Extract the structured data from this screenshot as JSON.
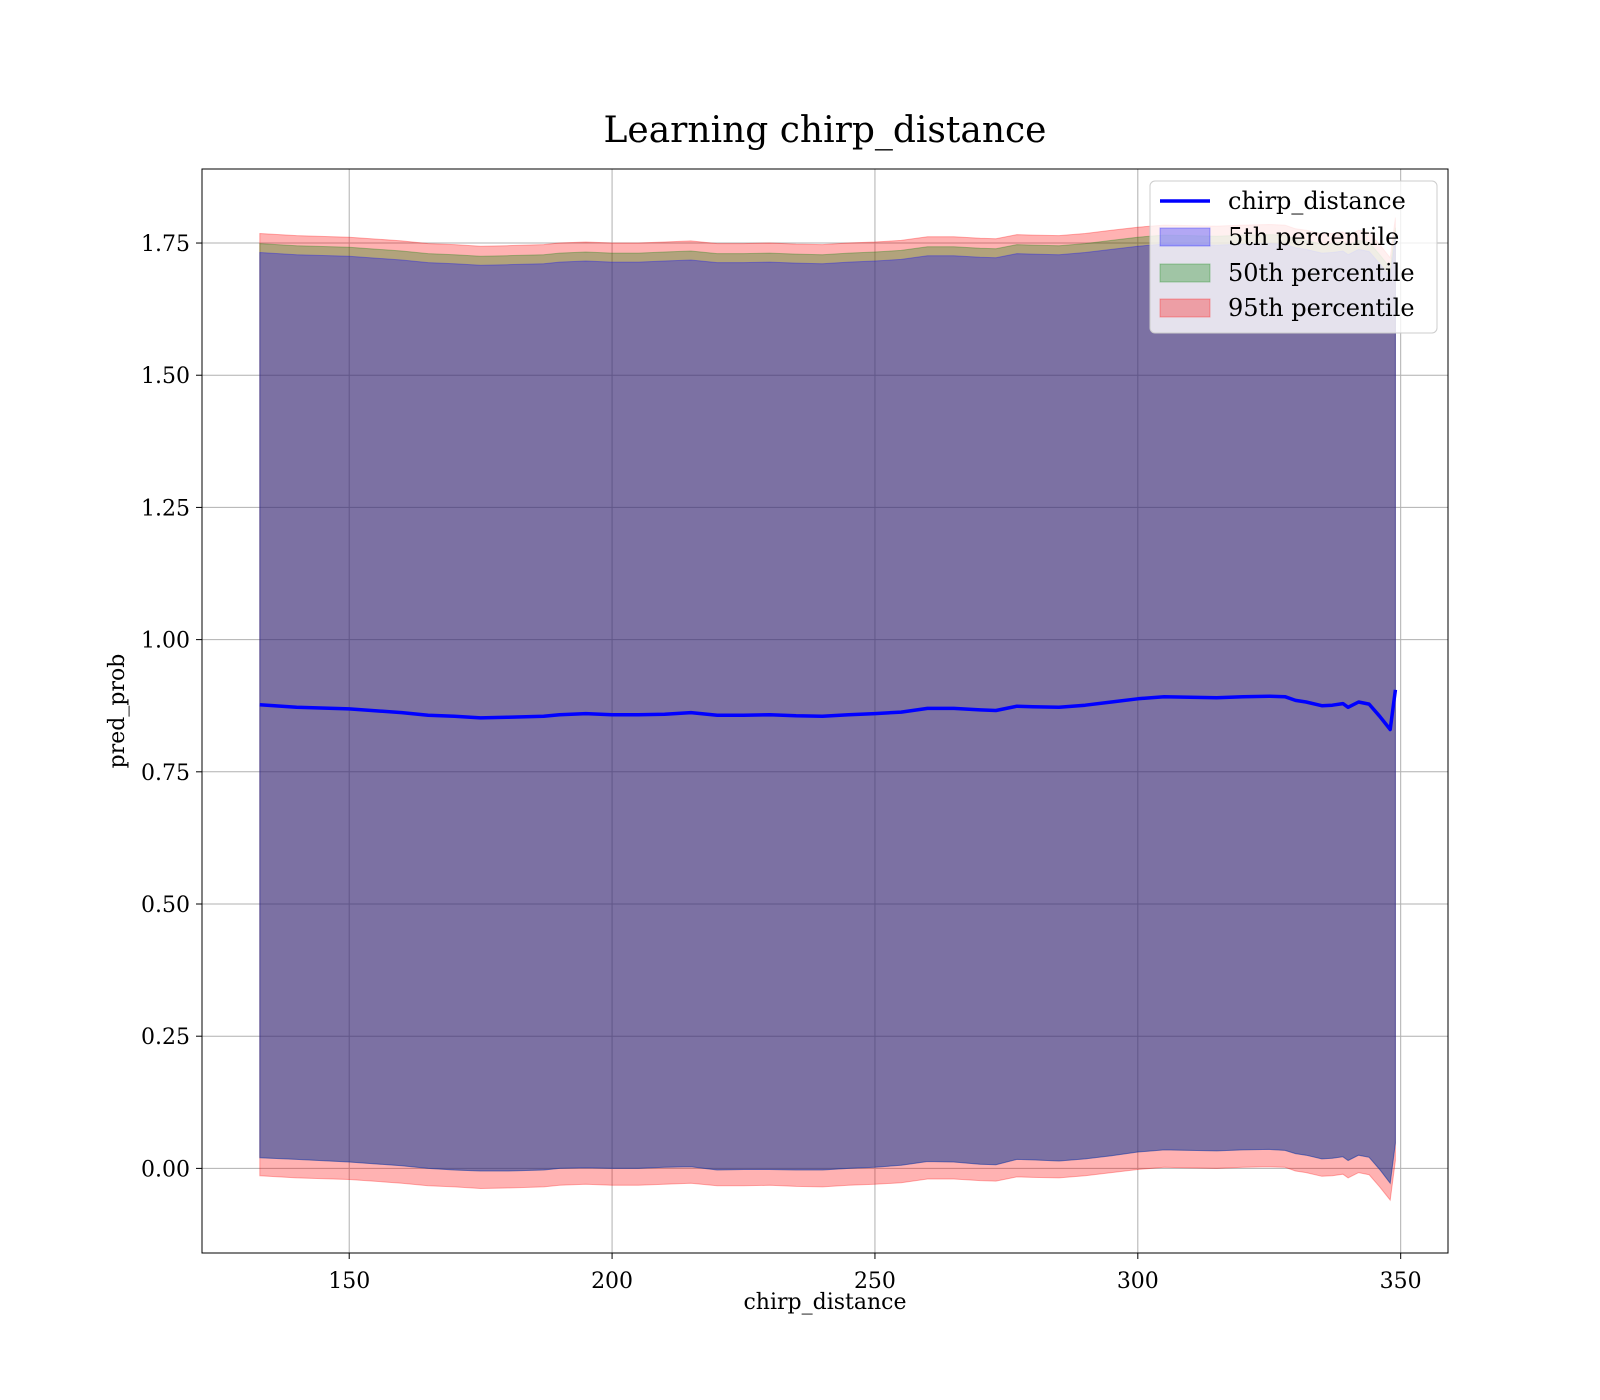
{
  "chart_data": {
    "type": "area",
    "title": "Learning chirp_distance",
    "xlabel": "chirp_distance",
    "ylabel": "pred_prob",
    "xlim": [
      122,
      359
    ],
    "ylim": [
      -0.16,
      1.89
    ],
    "xticks": [
      150,
      200,
      250,
      300,
      350
    ],
    "xtick_labels": [
      "150",
      "200",
      "250",
      "300",
      "350"
    ],
    "yticks": [
      0.0,
      0.25,
      0.5,
      0.75,
      1.0,
      1.25,
      1.5,
      1.75
    ],
    "ytick_labels": [
      "0.00",
      "0.25",
      "0.50",
      "0.75",
      "1.00",
      "1.25",
      "1.50",
      "1.75"
    ],
    "grid": true,
    "legend_position": "top-right",
    "colors": {
      "line": "#0000ff",
      "band_5th": "#0000ff",
      "band_50th": "#008000",
      "band_95th": "#ff0000",
      "grid": "#b0b0b0"
    },
    "x": [
      133,
      140,
      150,
      160,
      165,
      170,
      175,
      180,
      187,
      190,
      195,
      200,
      205,
      210,
      215,
      220,
      225,
      230,
      235,
      240,
      245,
      250,
      255,
      260,
      265,
      270,
      273,
      277,
      280,
      285,
      290,
      295,
      300,
      305,
      310,
      315,
      320,
      325,
      328,
      330,
      332,
      335,
      337,
      339,
      340,
      342,
      344,
      346,
      348,
      349
    ],
    "series": [
      {
        "name": "chirp_distance",
        "style": "line",
        "values": [
          0.877,
          0.872,
          0.869,
          0.862,
          0.857,
          0.855,
          0.852,
          0.853,
          0.855,
          0.858,
          0.86,
          0.858,
          0.858,
          0.859,
          0.862,
          0.857,
          0.857,
          0.858,
          0.856,
          0.855,
          0.858,
          0.86,
          0.863,
          0.87,
          0.87,
          0.867,
          0.866,
          0.874,
          0.873,
          0.872,
          0.876,
          0.882,
          0.888,
          0.892,
          0.891,
          0.89,
          0.892,
          0.893,
          0.892,
          0.885,
          0.882,
          0.875,
          0.876,
          0.879,
          0.872,
          0.882,
          0.878,
          0.855,
          0.83,
          0.905
        ]
      },
      {
        "name": "5th percentile",
        "style": "band",
        "lower": [
          0.02,
          0.017,
          0.012,
          0.005,
          0.0,
          -0.003,
          -0.005,
          -0.005,
          -0.003,
          0.0,
          0.001,
          0.0,
          0.0,
          0.002,
          0.003,
          -0.003,
          -0.002,
          -0.002,
          -0.003,
          -0.003,
          0.0,
          0.002,
          0.006,
          0.013,
          0.012,
          0.008,
          0.007,
          0.017,
          0.016,
          0.014,
          0.018,
          0.024,
          0.031,
          0.035,
          0.034,
          0.033,
          0.035,
          0.036,
          0.034,
          0.028,
          0.025,
          0.018,
          0.019,
          0.022,
          0.015,
          0.025,
          0.021,
          -0.002,
          -0.028,
          0.048
        ],
        "upper": [
          1.732,
          1.728,
          1.725,
          1.718,
          1.713,
          1.711,
          1.708,
          1.709,
          1.711,
          1.714,
          1.716,
          1.714,
          1.714,
          1.716,
          1.718,
          1.713,
          1.713,
          1.714,
          1.712,
          1.711,
          1.714,
          1.716,
          1.719,
          1.726,
          1.726,
          1.723,
          1.722,
          1.73,
          1.729,
          1.728,
          1.732,
          1.738,
          1.744,
          1.748,
          1.747,
          1.746,
          1.748,
          1.749,
          1.748,
          1.741,
          1.738,
          1.731,
          1.732,
          1.735,
          1.728,
          1.738,
          1.734,
          1.711,
          1.686,
          1.762
        ]
      },
      {
        "name": "50th percentile",
        "style": "band",
        "lower": [
          0.02,
          0.017,
          0.012,
          0.005,
          0.0,
          -0.003,
          -0.005,
          -0.005,
          -0.003,
          0.0,
          0.001,
          0.0,
          0.0,
          0.002,
          0.003,
          -0.003,
          -0.002,
          -0.002,
          -0.003,
          -0.003,
          0.0,
          0.002,
          0.006,
          0.013,
          0.012,
          0.008,
          0.007,
          0.017,
          0.016,
          0.014,
          0.018,
          0.024,
          0.031,
          0.035,
          0.034,
          0.033,
          0.035,
          0.036,
          0.034,
          0.028,
          0.025,
          0.018,
          0.019,
          0.022,
          0.015,
          0.025,
          0.021,
          -0.002,
          -0.028,
          0.048
        ],
        "upper": [
          1.749,
          1.745,
          1.742,
          1.735,
          1.73,
          1.728,
          1.725,
          1.726,
          1.728,
          1.731,
          1.733,
          1.731,
          1.731,
          1.733,
          1.735,
          1.73,
          1.73,
          1.731,
          1.729,
          1.728,
          1.731,
          1.733,
          1.736,
          1.743,
          1.743,
          1.74,
          1.739,
          1.747,
          1.746,
          1.745,
          1.749,
          1.755,
          1.761,
          1.765,
          1.764,
          1.763,
          1.765,
          1.766,
          1.765,
          1.758,
          1.755,
          1.748,
          1.749,
          1.752,
          1.745,
          1.755,
          1.751,
          1.728,
          1.703,
          1.779
        ]
      },
      {
        "name": "95th percentile",
        "style": "band",
        "lower": [
          -0.014,
          -0.018,
          -0.021,
          -0.028,
          -0.033,
          -0.035,
          -0.038,
          -0.037,
          -0.035,
          -0.032,
          -0.03,
          -0.032,
          -0.032,
          -0.03,
          -0.028,
          -0.033,
          -0.033,
          -0.032,
          -0.034,
          -0.035,
          -0.032,
          -0.03,
          -0.027,
          -0.02,
          -0.02,
          -0.023,
          -0.024,
          -0.016,
          -0.017,
          -0.018,
          -0.014,
          -0.008,
          -0.002,
          0.002,
          0.001,
          0.0,
          0.002,
          0.003,
          0.002,
          -0.005,
          -0.008,
          -0.015,
          -0.014,
          -0.011,
          -0.018,
          -0.008,
          -0.012,
          -0.035,
          -0.06,
          0.015
        ],
        "upper": [
          1.768,
          1.764,
          1.761,
          1.754,
          1.749,
          1.747,
          1.744,
          1.745,
          1.747,
          1.75,
          1.752,
          1.75,
          1.75,
          1.752,
          1.754,
          1.749,
          1.749,
          1.75,
          1.748,
          1.747,
          1.75,
          1.752,
          1.755,
          1.762,
          1.762,
          1.759,
          1.758,
          1.766,
          1.765,
          1.764,
          1.768,
          1.774,
          1.78,
          1.784,
          1.783,
          1.782,
          1.784,
          1.785,
          1.784,
          1.777,
          1.774,
          1.767,
          1.768,
          1.771,
          1.764,
          1.774,
          1.77,
          1.747,
          1.722,
          1.798
        ]
      }
    ],
    "legend": [
      "chirp_distance",
      "5th percentile",
      "50th percentile",
      "95th percentile"
    ]
  }
}
